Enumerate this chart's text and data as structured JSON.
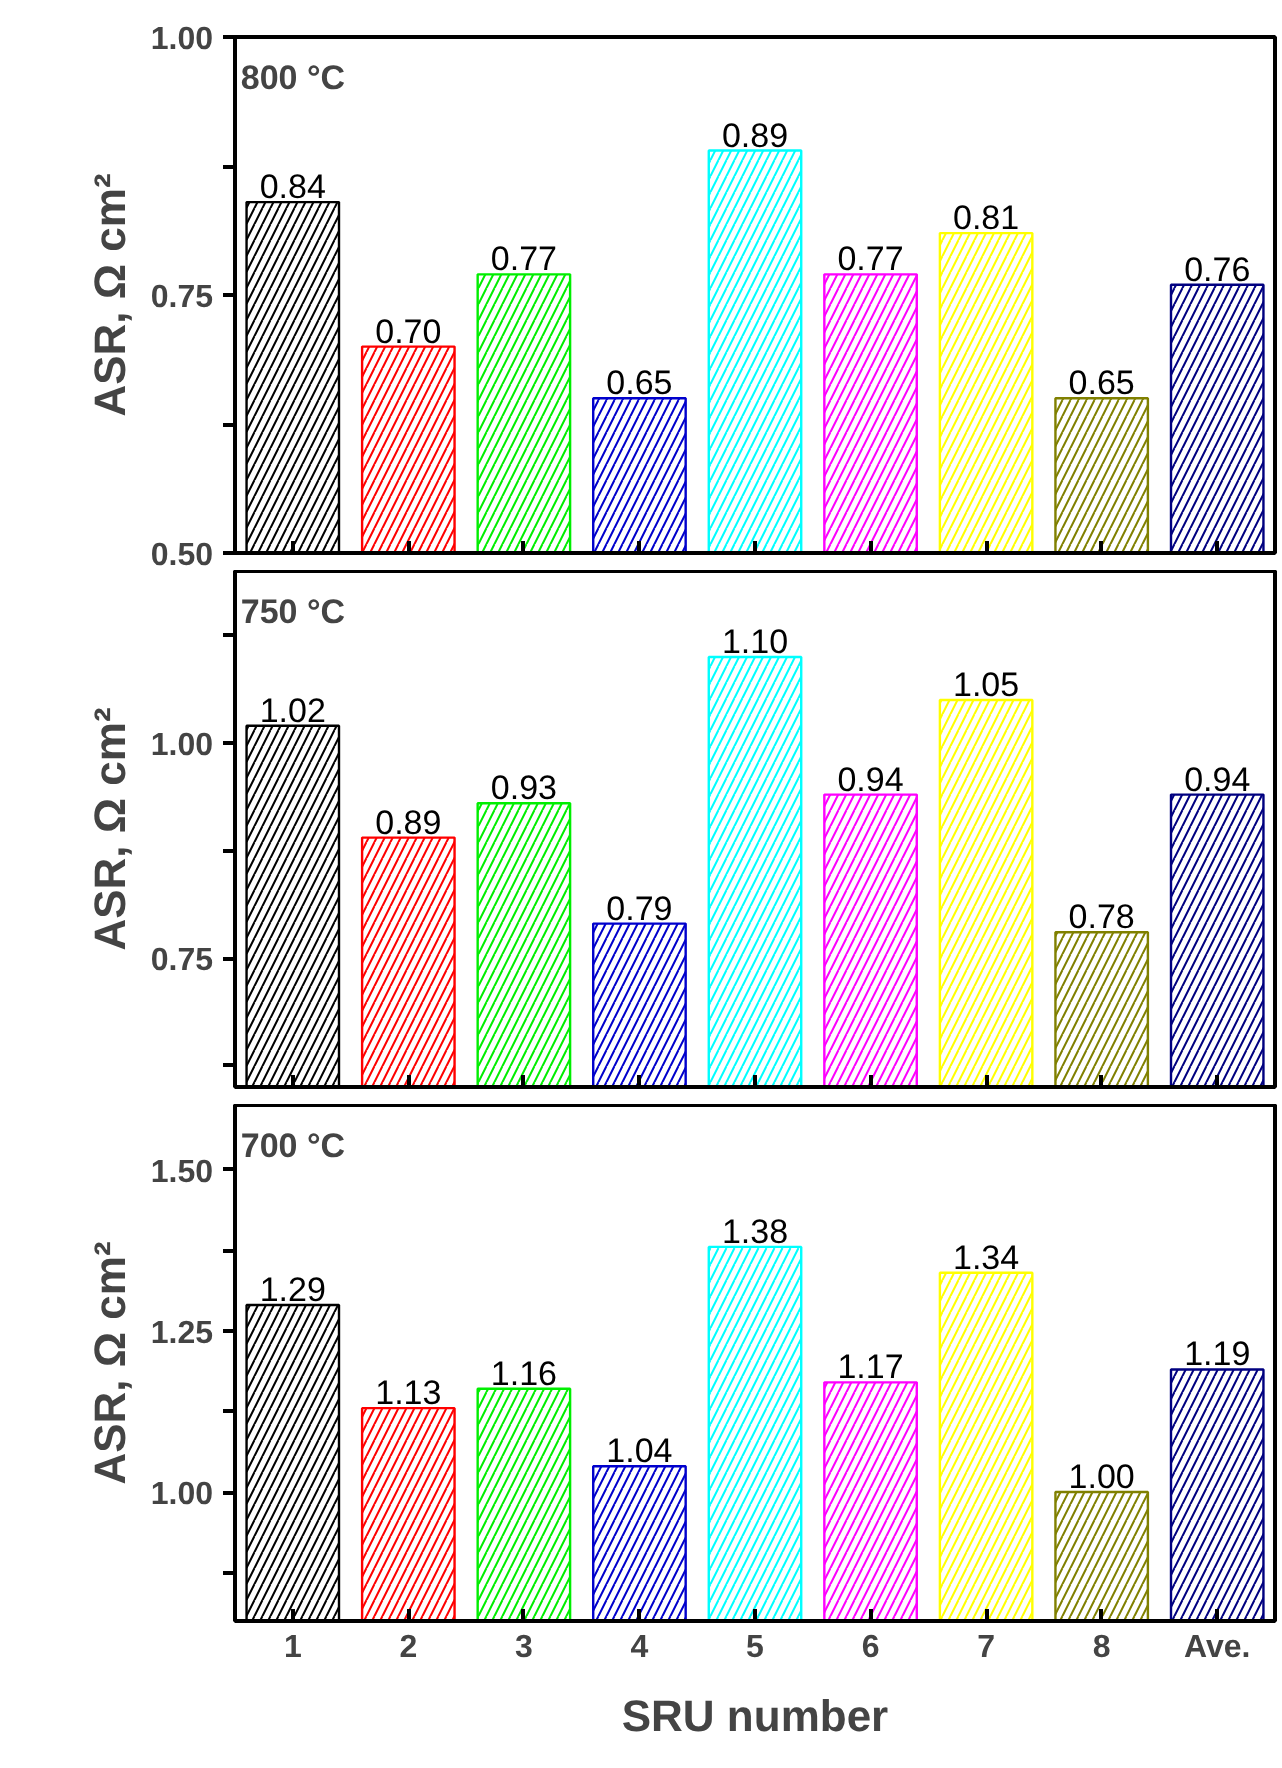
{
  "chart_data": [
    {
      "type": "bar",
      "values": [
        0.84,
        0.7,
        0.77,
        0.65,
        0.89,
        0.77,
        0.81,
        0.65,
        0.76
      ],
      "colors": [
        "#000000",
        "#ff0000",
        "#00ee00",
        "#0000cc",
        "#00ffff",
        "#ff00ff",
        "#ffff00",
        "#808000",
        "#000080"
      ],
      "ylabel": "ASR, Ω cm²",
      "annotations": [
        "800 °C"
      ],
      "ylim": [
        0.5,
        1.0
      ],
      "yticks": [
        {
          "value": 0.5,
          "label": "0.50"
        },
        {
          "value": 0.625,
          "label": null
        },
        {
          "value": 0.75,
          "label": "0.75"
        },
        {
          "value": 0.875,
          "label": null
        },
        {
          "value": 1.0,
          "label": "1.00"
        }
      ],
      "value_labels": [
        "0.84",
        "0.70",
        "0.77",
        "0.65",
        "0.89",
        "0.77",
        "0.81",
        "0.65",
        "0.76"
      ],
      "tick_labels": "y",
      "grid": false,
      "legend": false
    },
    {
      "type": "bar",
      "values": [
        1.02,
        0.89,
        0.93,
        0.79,
        1.1,
        0.94,
        1.05,
        0.78,
        0.94
      ],
      "colors": [
        "#000000",
        "#ff0000",
        "#00ee00",
        "#0000cc",
        "#00ffff",
        "#ff00ff",
        "#ffff00",
        "#808000",
        "#000080"
      ],
      "ylabel": "ASR, Ω cm²",
      "annotations": [
        "750 °C"
      ],
      "ylim": [
        0.6,
        1.2
      ],
      "yticks": [
        {
          "value": 0.625,
          "label": null
        },
        {
          "value": 0.75,
          "label": "0.75"
        },
        {
          "value": 0.875,
          "label": null
        },
        {
          "value": 1.0,
          "label": "1.00"
        },
        {
          "value": 1.125,
          "label": null
        }
      ],
      "value_labels": [
        "1.02",
        "0.89",
        "0.93",
        "0.79",
        "1.10",
        "0.94",
        "1.05",
        "0.78",
        "0.94"
      ],
      "tick_labels": "y",
      "grid": false,
      "legend": false
    },
    {
      "type": "bar",
      "categories": [
        "1",
        "2",
        "3",
        "4",
        "5",
        "6",
        "7",
        "8",
        "Ave."
      ],
      "values": [
        1.29,
        1.13,
        1.16,
        1.04,
        1.38,
        1.17,
        1.34,
        1.0,
        1.19
      ],
      "colors": [
        "#000000",
        "#ff0000",
        "#00ee00",
        "#0000cc",
        "#00ffff",
        "#ff00ff",
        "#ffff00",
        "#808000",
        "#000080"
      ],
      "ylabel": "ASR, Ω cm²",
      "xlabel": "SRU number",
      "annotations": [
        "700 °C"
      ],
      "ylim": [
        0.8,
        1.6
      ],
      "yticks": [
        {
          "value": 0.875,
          "label": null
        },
        {
          "value": 1.0,
          "label": "1.00"
        },
        {
          "value": 1.125,
          "label": null
        },
        {
          "value": 1.25,
          "label": "1.25"
        },
        {
          "value": 1.375,
          "label": null
        },
        {
          "value": 1.5,
          "label": "1.50"
        }
      ],
      "value_labels": [
        "1.29",
        "1.13",
        "1.16",
        "1.04",
        "1.38",
        "1.17",
        "1.34",
        "1.00",
        "1.19"
      ],
      "grid": false,
      "legend": false
    }
  ]
}
